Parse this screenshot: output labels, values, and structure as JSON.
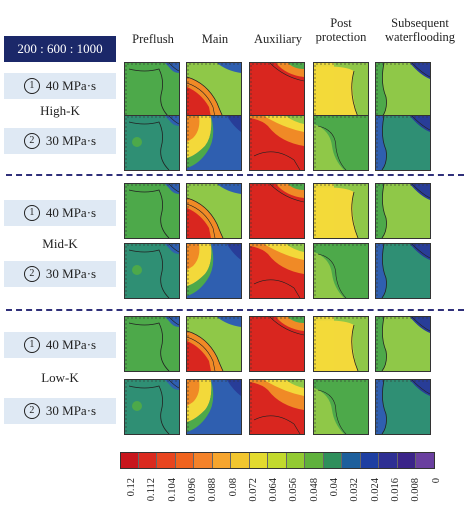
{
  "column_headers": [
    "Preflush",
    "Main",
    "Auxiliary",
    "Post\nprotection",
    "Subsequent\nwaterflooding"
  ],
  "ratio_label": "200 : 600 : 1000",
  "groups": [
    {
      "permeability": "High-K",
      "rows": [
        {
          "index": "1",
          "viscosity": "40 MPa·s"
        },
        {
          "index": "2",
          "viscosity": "30 MPa·s"
        }
      ]
    },
    {
      "permeability": "Mid-K",
      "rows": [
        {
          "index": "1",
          "viscosity": "40 MPa·s"
        },
        {
          "index": "2",
          "viscosity": "30 MPa·s"
        }
      ]
    },
    {
      "permeability": "Low-K",
      "rows": [
        {
          "index": "1",
          "viscosity": "40 MPa·s"
        },
        {
          "index": "2",
          "viscosity": "30 MPa·s"
        }
      ]
    }
  ],
  "colorbar": {
    "tick_labels": [
      "0.12",
      "0.112",
      "0.104",
      "0.096",
      "0.088",
      "0.08",
      "0.072",
      "0.064",
      "0.056",
      "0.048",
      "0.04",
      "0.032",
      "0.024",
      "0.016",
      "0.008",
      "0"
    ],
    "colors": [
      "#c8161d",
      "#da2a1f",
      "#e8451f",
      "#f0631e",
      "#f4822a",
      "#f6a52e",
      "#f2c62f",
      "#e3da2f",
      "#c2d92d",
      "#93ca32",
      "#5fb13c",
      "#2f8f5c",
      "#1d5f9c",
      "#1e3fa2",
      "#2e2f93",
      "#3b2489",
      "#6a3f9f"
    ]
  },
  "panels": {
    "palette": {
      "red": "#d9261f",
      "orange": "#f08a26",
      "yellow": "#f3d93a",
      "lightgreen": "#8fc848",
      "green": "#4da94a",
      "teal": "#2f8f74",
      "blue": "#2f5fb0",
      "darkblue": "#283d98",
      "purple": "#6e3fa0"
    },
    "types": [
      "preflush",
      "main",
      "auxiliary",
      "post",
      "subsequent"
    ]
  }
}
